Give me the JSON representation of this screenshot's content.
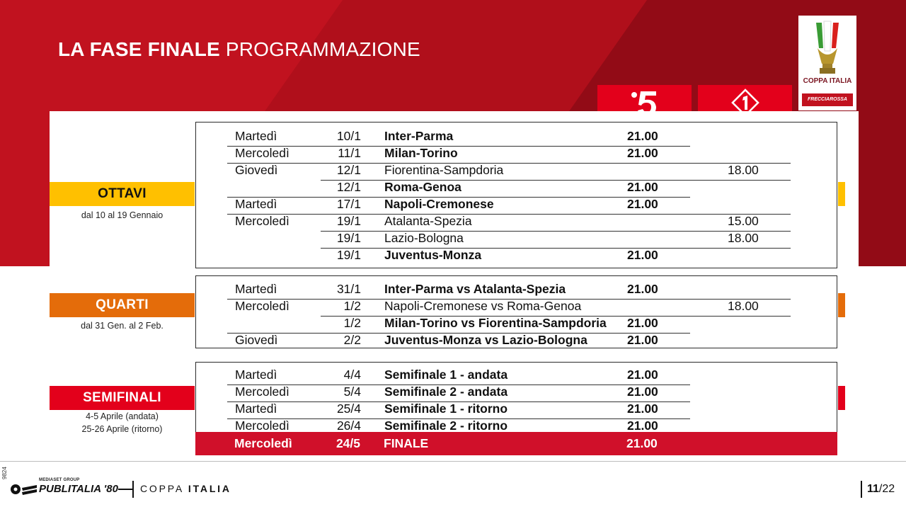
{
  "header": {
    "title_bold": "LA FASE FINALE",
    "title_light": "PROGRAMMAZIONE"
  },
  "logo": {
    "name": "COPPA ITALIA",
    "sponsor": "FRECCIAROSSA"
  },
  "channels": {
    "ch5_icon": "canale5-logo-icon",
    "ch1_icon": "italia1-logo-icon"
  },
  "colors": {
    "brand_red": "#c1121f",
    "ottavi": "#ffc000",
    "quarti": "#e46c0a",
    "semifinali": "#e3001b",
    "final_bar": "#d0102a"
  },
  "phases": {
    "ottavi": {
      "label": "OTTAVI",
      "dates": "dal 10 al 19 Gennaio"
    },
    "quarti": {
      "label": "QUARTI",
      "dates": "dal 31 Gen. al 2 Feb."
    },
    "semifinali": {
      "label": "SEMIFINALI",
      "dates1": "4-5 Aprile (andata)",
      "dates2": "25-26 Aprile (ritorno)"
    }
  },
  "ottavi_rows": [
    {
      "day": "Martedì",
      "date": "10/1",
      "match": "Inter-Parma",
      "ch5": "21.00",
      "ch1": ""
    },
    {
      "day": "Mercoledì",
      "date": "11/1",
      "match": "Milan-Torino",
      "ch5": "21.00",
      "ch1": ""
    },
    {
      "day": "Giovedì",
      "date": "12/1",
      "match": "Fiorentina-Sampdoria",
      "ch5": "",
      "ch1": "18.00"
    },
    {
      "day": "",
      "date": "12/1",
      "match": "Roma-Genoa",
      "ch5": "21.00",
      "ch1": ""
    },
    {
      "day": "Martedì",
      "date": "17/1",
      "match": "Napoli-Cremonese",
      "ch5": "21.00",
      "ch1": ""
    },
    {
      "day": "Mercoledì",
      "date": "19/1",
      "match": "Atalanta-Spezia",
      "ch5": "",
      "ch1": "15.00"
    },
    {
      "day": "",
      "date": "19/1",
      "match": "Lazio-Bologna",
      "ch5": "",
      "ch1": "18.00"
    },
    {
      "day": "",
      "date": "19/1",
      "match": "Juventus-Monza",
      "ch5": "21.00",
      "ch1": ""
    }
  ],
  "quarti_rows": [
    {
      "day": "Martedì",
      "date": "31/1",
      "match": "Inter-Parma vs Atalanta-Spezia",
      "ch5": "21.00",
      "ch1": ""
    },
    {
      "day": "Mercoledì",
      "date": "1/2",
      "match": "Napoli-Cremonese vs Roma-Genoa",
      "ch5": "",
      "ch1": "18.00"
    },
    {
      "day": "",
      "date": "1/2",
      "match": "Milan-Torino vs Fiorentina-Sampdoria",
      "ch5": "21.00",
      "ch1": ""
    },
    {
      "day": "Giovedì",
      "date": "2/2",
      "match": "Juventus-Monza vs Lazio-Bologna",
      "ch5": "21.00",
      "ch1": ""
    }
  ],
  "semi_rows": [
    {
      "day": "Martedì",
      "date": "4/4",
      "match": "Semifinale 1 - andata",
      "ch5": "21.00",
      "ch1": ""
    },
    {
      "day": "Mercoledì",
      "date": "5/4",
      "match": "Semifinale 2 - andata",
      "ch5": "21.00",
      "ch1": ""
    },
    {
      "day": "Martedì",
      "date": "25/4",
      "match": "Semifinale 1 - ritorno",
      "ch5": "21.00",
      "ch1": ""
    },
    {
      "day": "Mercoledì",
      "date": "26/4",
      "match": "Semifinale 2 - ritorno",
      "ch5": "21.00",
      "ch1": ""
    }
  ],
  "final_row": {
    "day": "Mercoledì",
    "date": "24/5",
    "match": "FINALE",
    "ch5": "21.00"
  },
  "footer": {
    "code": "9824",
    "group": "MEDIASET GROUP",
    "brand": "PUBLITALIA '80",
    "section_a": "COPPA",
    "section_b": "ITALIA",
    "page_current": "11",
    "page_total": "/22"
  }
}
